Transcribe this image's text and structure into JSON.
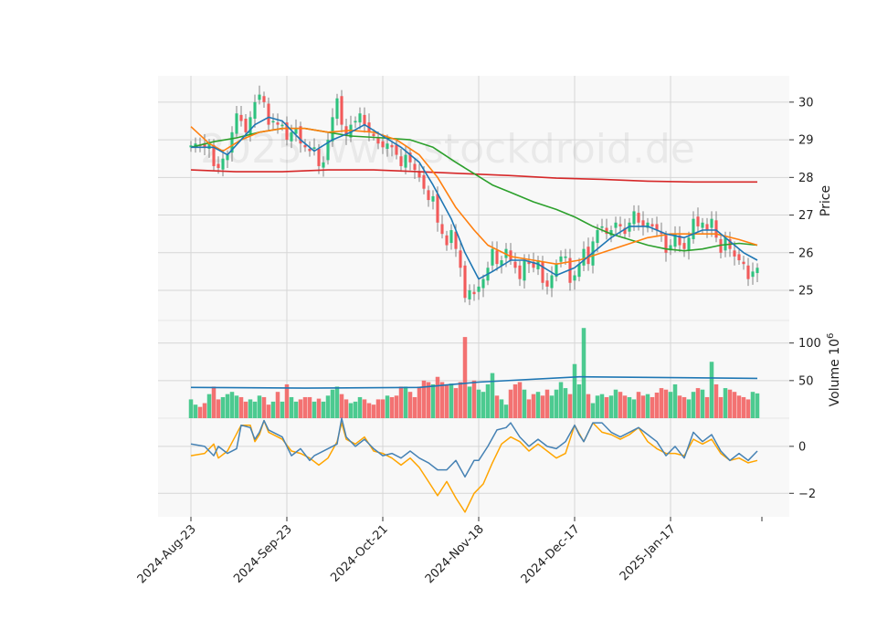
{
  "watermark": "2025 www.stockdroid.de",
  "colors": {
    "up": "#2ec27e",
    "down": "#f25a5a",
    "bg": "#f8f8f8",
    "grid": "#d6d6d6",
    "sma_short": "#1f77b4",
    "sma_mid": "#ff7f0e",
    "sma_long": "#2ca02c",
    "sma_200": "#d62728",
    "vol_avg": "#1f77b4",
    "osc_a": "#4682b4",
    "osc_b": "#ffa500"
  },
  "chart_data": [
    {
      "type": "candlestick",
      "ylabel": "Price",
      "ylim": [
        24.2,
        30.7
      ],
      "yticks": [
        25,
        26,
        27,
        28,
        29,
        30
      ],
      "xticks": [
        {
          "i": 0,
          "label": "2024-Aug-23"
        },
        {
          "i": 21,
          "label": "2024-Sep-23"
        },
        {
          "i": 42,
          "label": "2024-Oct-21"
        },
        {
          "i": 63,
          "label": "2024-Nov-18"
        },
        {
          "i": 84,
          "label": "2024-Dec-17"
        },
        {
          "i": 105,
          "label": "2025-Jan-17"
        }
      ],
      "close": [
        28.85,
        28.9,
        28.85,
        28.8,
        28.9,
        28.3,
        28.25,
        28.5,
        28.6,
        29.2,
        29.7,
        29.5,
        29.2,
        29.6,
        30.0,
        30.2,
        30.0,
        29.4,
        29.5,
        29.4,
        29.4,
        29.0,
        29.2,
        29.3,
        28.9,
        28.8,
        28.7,
        28.8,
        28.3,
        28.4,
        29.0,
        29.6,
        30.1,
        29.4,
        29.1,
        29.4,
        29.5,
        29.7,
        29.4,
        29.2,
        29.1,
        28.9,
        28.8,
        28.9,
        28.8,
        28.6,
        28.3,
        28.6,
        28.4,
        28.2,
        28.0,
        27.7,
        27.4,
        27.5,
        26.8,
        26.5,
        26.2,
        26.6,
        26.1,
        25.6,
        24.8,
        25.0,
        24.9,
        25.1,
        25.3,
        25.6,
        26.1,
        25.7,
        25.8,
        26.1,
        25.8,
        25.6,
        25.3,
        25.8,
        25.7,
        25.6,
        25.8,
        25.2,
        25.1,
        25.4,
        25.7,
        25.9,
        25.9,
        25.2,
        25.4,
        25.7,
        26.1,
        25.7,
        26.3,
        26.6,
        26.7,
        26.5,
        26.6,
        26.8,
        26.7,
        26.5,
        26.8,
        27.1,
        26.8,
        26.7,
        26.8,
        26.7,
        26.6,
        26.5,
        26.0,
        26.2,
        26.5,
        26.2,
        26.1,
        26.4,
        26.9,
        26.7,
        26.8,
        26.6,
        26.9,
        26.4,
        26.0,
        26.4,
        26.1,
        25.9,
        25.8,
        25.7,
        25.3,
        25.5,
        25.6
      ],
      "volume": [
        25,
        18,
        15,
        20,
        32,
        42,
        25,
        28,
        32,
        35,
        30,
        28,
        22,
        25,
        22,
        30,
        28,
        18,
        22,
        35,
        22,
        45,
        28,
        22,
        25,
        28,
        28,
        22,
        26,
        22,
        30,
        38,
        42,
        32,
        25,
        20,
        22,
        28,
        25,
        20,
        18,
        25,
        25,
        30,
        28,
        30,
        42,
        42,
        35,
        28,
        42,
        50,
        48,
        45,
        55,
        48,
        45,
        46,
        40,
        48,
        108,
        42,
        50,
        38,
        35,
        45,
        60,
        30,
        25,
        18,
        38,
        45,
        48,
        38,
        25,
        32,
        35,
        30,
        38,
        30,
        38,
        48,
        40,
        32,
        72,
        45,
        120,
        32,
        20,
        30,
        32,
        28,
        30,
        38,
        35,
        30,
        28,
        25,
        35,
        30,
        32,
        28,
        34,
        40,
        38,
        35,
        45,
        30,
        28,
        25,
        35,
        40,
        38,
        28,
        75,
        45,
        28,
        40,
        38,
        35,
        30,
        28,
        25,
        35,
        33
      ],
      "volume_scale": "10^6",
      "volume_ylabel": "Volume  10^6",
      "volume_ylim": [
        0,
        130
      ],
      "volume_yticks": [
        50,
        100
      ],
      "volume_avg": [
        [
          0,
          41
        ],
        [
          25,
          40
        ],
        [
          50,
          41
        ],
        [
          63,
          48
        ],
        [
          85,
          55
        ],
        [
          105,
          54
        ],
        [
          124,
          53
        ]
      ],
      "sma_short": [
        [
          0,
          28.8
        ],
        [
          5,
          28.8
        ],
        [
          8,
          28.6
        ],
        [
          11,
          29.0
        ],
        [
          14,
          29.4
        ],
        [
          17,
          29.6
        ],
        [
          20,
          29.5
        ],
        [
          24,
          29.0
        ],
        [
          27,
          28.7
        ],
        [
          31,
          29.0
        ],
        [
          35,
          29.2
        ],
        [
          38,
          29.4
        ],
        [
          42,
          29.1
        ],
        [
          46,
          28.8
        ],
        [
          50,
          28.4
        ],
        [
          53,
          27.8
        ],
        [
          57,
          26.9
        ],
        [
          60,
          26.0
        ],
        [
          63,
          25.3
        ],
        [
          66,
          25.5
        ],
        [
          70,
          25.8
        ],
        [
          73,
          25.8
        ],
        [
          76,
          25.7
        ],
        [
          80,
          25.4
        ],
        [
          84,
          25.6
        ],
        [
          88,
          26.0
        ],
        [
          92,
          26.4
        ],
        [
          96,
          26.7
        ],
        [
          100,
          26.7
        ],
        [
          104,
          26.5
        ],
        [
          108,
          26.4
        ],
        [
          112,
          26.6
        ],
        [
          115,
          26.6
        ],
        [
          118,
          26.3
        ],
        [
          121,
          26.0
        ],
        [
          124,
          25.8
        ]
      ],
      "sma_mid": [
        [
          0,
          29.35
        ],
        [
          4,
          28.9
        ],
        [
          7,
          28.7
        ],
        [
          11,
          29.0
        ],
        [
          15,
          29.2
        ],
        [
          20,
          29.3
        ],
        [
          25,
          29.3
        ],
        [
          30,
          29.2
        ],
        [
          35,
          29.25
        ],
        [
          40,
          29.2
        ],
        [
          45,
          29.0
        ],
        [
          50,
          28.6
        ],
        [
          54,
          28.0
        ],
        [
          58,
          27.2
        ],
        [
          62,
          26.6
        ],
        [
          65,
          26.2
        ],
        [
          70,
          25.9
        ],
        [
          75,
          25.8
        ],
        [
          80,
          25.7
        ],
        [
          85,
          25.8
        ],
        [
          90,
          26.0
        ],
        [
          95,
          26.2
        ],
        [
          100,
          26.4
        ],
        [
          105,
          26.5
        ],
        [
          110,
          26.5
        ],
        [
          115,
          26.5
        ],
        [
          120,
          26.35
        ],
        [
          124,
          26.2
        ]
      ],
      "sma_long": [
        [
          0,
          28.8
        ],
        [
          5,
          28.95
        ],
        [
          10,
          29.05
        ],
        [
          15,
          29.2
        ],
        [
          20,
          29.3
        ],
        [
          25,
          29.3
        ],
        [
          30,
          29.2
        ],
        [
          35,
          29.1
        ],
        [
          42,
          29.05
        ],
        [
          48,
          29.0
        ],
        [
          53,
          28.8
        ],
        [
          58,
          28.4
        ],
        [
          62,
          28.1
        ],
        [
          66,
          27.8
        ],
        [
          70,
          27.6
        ],
        [
          75,
          27.35
        ],
        [
          80,
          27.15
        ],
        [
          84,
          26.95
        ],
        [
          88,
          26.7
        ],
        [
          92,
          26.5
        ],
        [
          96,
          26.35
        ],
        [
          100,
          26.2
        ],
        [
          104,
          26.1
        ],
        [
          108,
          26.05
        ],
        [
          112,
          26.1
        ],
        [
          116,
          26.2
        ],
        [
          120,
          26.25
        ],
        [
          124,
          26.2
        ]
      ],
      "sma_200": [
        [
          0,
          28.2
        ],
        [
          10,
          28.15
        ],
        [
          20,
          28.15
        ],
        [
          30,
          28.2
        ],
        [
          40,
          28.2
        ],
        [
          50,
          28.15
        ],
        [
          60,
          28.1
        ],
        [
          70,
          28.05
        ],
        [
          80,
          27.98
        ],
        [
          90,
          27.95
        ],
        [
          100,
          27.9
        ],
        [
          110,
          27.88
        ],
        [
          124,
          27.88
        ]
      ],
      "osc_ylim": [
        -3.0,
        1.2
      ],
      "osc_yticks": [
        -2,
        0
      ],
      "osc_a": [
        [
          0,
          0.1
        ],
        [
          3,
          0.0
        ],
        [
          5,
          -0.4
        ],
        [
          6,
          0.0
        ],
        [
          8,
          -0.3
        ],
        [
          10,
          -0.1
        ],
        [
          11,
          0.9
        ],
        [
          13,
          0.8
        ],
        [
          14,
          0.3
        ],
        [
          15,
          0.6
        ],
        [
          16,
          1.1
        ],
        [
          17,
          0.7
        ],
        [
          20,
          0.4
        ],
        [
          22,
          -0.4
        ],
        [
          24,
          -0.1
        ],
        [
          26,
          -0.6
        ],
        [
          27,
          -0.4
        ],
        [
          28,
          -0.3
        ],
        [
          30,
          -0.1
        ],
        [
          32,
          0.1
        ],
        [
          33,
          1.2
        ],
        [
          34,
          0.4
        ],
        [
          36,
          0.0
        ],
        [
          38,
          0.3
        ],
        [
          40,
          -0.1
        ],
        [
          42,
          -0.4
        ],
        [
          44,
          -0.3
        ],
        [
          46,
          -0.5
        ],
        [
          48,
          -0.2
        ],
        [
          50,
          -0.5
        ],
        [
          52,
          -0.7
        ],
        [
          54,
          -1.0
        ],
        [
          56,
          -1.0
        ],
        [
          58,
          -0.6
        ],
        [
          60,
          -1.3
        ],
        [
          62,
          -0.6
        ],
        [
          63,
          -0.6
        ],
        [
          65,
          0.0
        ],
        [
          67,
          0.7
        ],
        [
          69,
          0.8
        ],
        [
          70,
          1.0
        ],
        [
          72,
          0.4
        ],
        [
          74,
          0.0
        ],
        [
          76,
          0.3
        ],
        [
          78,
          0.0
        ],
        [
          80,
          -0.1
        ],
        [
          82,
          0.2
        ],
        [
          84,
          0.9
        ],
        [
          85,
          0.5
        ],
        [
          86,
          0.2
        ],
        [
          88,
          1.0
        ],
        [
          90,
          1.0
        ],
        [
          92,
          0.6
        ],
        [
          94,
          0.4
        ],
        [
          96,
          0.6
        ],
        [
          98,
          0.8
        ],
        [
          100,
          0.5
        ],
        [
          102,
          0.2
        ],
        [
          104,
          -0.4
        ],
        [
          106,
          0.0
        ],
        [
          108,
          -0.5
        ],
        [
          110,
          0.6
        ],
        [
          112,
          0.2
        ],
        [
          114,
          0.5
        ],
        [
          116,
          -0.2
        ],
        [
          118,
          -0.6
        ],
        [
          120,
          -0.3
        ],
        [
          122,
          -0.6
        ],
        [
          124,
          -0.2
        ]
      ],
      "osc_b": [
        [
          0,
          -0.4
        ],
        [
          3,
          -0.3
        ],
        [
          5,
          0.1
        ],
        [
          6,
          -0.5
        ],
        [
          8,
          -0.2
        ],
        [
          11,
          0.9
        ],
        [
          13,
          0.9
        ],
        [
          14,
          0.2
        ],
        [
          15,
          0.5
        ],
        [
          16,
          1.1
        ],
        [
          17,
          0.6
        ],
        [
          20,
          0.3
        ],
        [
          22,
          -0.2
        ],
        [
          24,
          -0.3
        ],
        [
          26,
          -0.5
        ],
        [
          28,
          -0.8
        ],
        [
          30,
          -0.5
        ],
        [
          32,
          0.2
        ],
        [
          33,
          1.0
        ],
        [
          34,
          0.3
        ],
        [
          36,
          0.1
        ],
        [
          38,
          0.4
        ],
        [
          40,
          -0.2
        ],
        [
          42,
          -0.3
        ],
        [
          44,
          -0.5
        ],
        [
          46,
          -0.8
        ],
        [
          48,
          -0.5
        ],
        [
          50,
          -0.9
        ],
        [
          52,
          -1.5
        ],
        [
          54,
          -2.1
        ],
        [
          56,
          -1.5
        ],
        [
          58,
          -2.2
        ],
        [
          60,
          -2.8
        ],
        [
          62,
          -2.0
        ],
        [
          64,
          -1.6
        ],
        [
          66,
          -0.7
        ],
        [
          68,
          0.1
        ],
        [
          70,
          0.4
        ],
        [
          72,
          0.2
        ],
        [
          74,
          -0.2
        ],
        [
          76,
          0.1
        ],
        [
          78,
          -0.2
        ],
        [
          80,
          -0.5
        ],
        [
          82,
          -0.3
        ],
        [
          84,
          0.9
        ],
        [
          86,
          0.2
        ],
        [
          88,
          1.0
        ],
        [
          90,
          0.6
        ],
        [
          92,
          0.5
        ],
        [
          94,
          0.3
        ],
        [
          96,
          0.5
        ],
        [
          98,
          0.8
        ],
        [
          100,
          0.2
        ],
        [
          102,
          -0.1
        ],
        [
          104,
          -0.3
        ],
        [
          106,
          -0.3
        ],
        [
          108,
          -0.4
        ],
        [
          110,
          0.3
        ],
        [
          112,
          0.1
        ],
        [
          114,
          0.3
        ],
        [
          116,
          -0.3
        ],
        [
          118,
          -0.6
        ],
        [
          120,
          -0.5
        ],
        [
          122,
          -0.7
        ],
        [
          124,
          -0.6
        ]
      ]
    }
  ]
}
